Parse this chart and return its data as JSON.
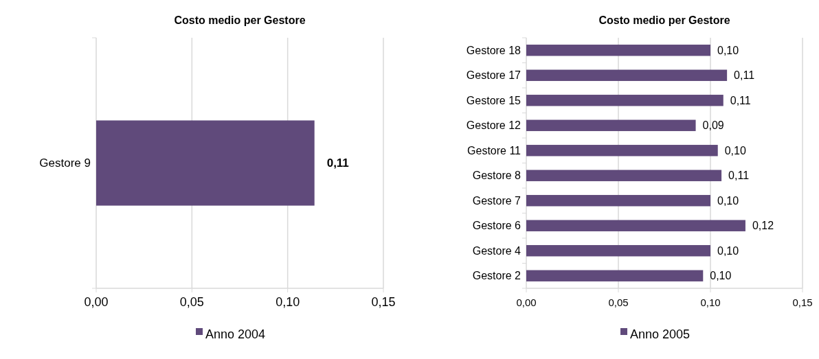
{
  "chart_data": [
    {
      "type": "bar",
      "orientation": "horizontal",
      "title": "Costo medio per Gestore",
      "categories": [
        "Gestore 9"
      ],
      "series": [
        {
          "name": "Anno 2004",
          "color": "#604a7b",
          "values": [
            0.114
          ],
          "value_labels": [
            "0,11"
          ]
        }
      ],
      "xlim": [
        0,
        0.15
      ],
      "xticks": [
        {
          "value": 0,
          "label": "0,00"
        },
        {
          "value": 0.05,
          "label": "0,05"
        },
        {
          "value": 0.1,
          "label": "0,10"
        },
        {
          "value": 0.15,
          "label": "0,15"
        }
      ],
      "grid": "x",
      "legend": "bottom"
    },
    {
      "type": "bar",
      "orientation": "horizontal",
      "title": "Costo medio per Gestore",
      "categories": [
        "Gestore 18",
        "Gestore 17",
        "Gestore 15",
        "Gestore 12",
        "Gestore 11",
        "Gestore 8",
        "Gestore 7",
        "Gestore 6",
        "Gestore 4",
        "Gestore 2"
      ],
      "series": [
        {
          "name": "Anno 2005",
          "color": "#604a7b",
          "values": [
            0.1,
            0.109,
            0.107,
            0.092,
            0.104,
            0.106,
            0.1,
            0.119,
            0.1,
            0.096
          ],
          "value_labels": [
            "0,10",
            "0,11",
            "0,11",
            "0,09",
            "0,10",
            "0,11",
            "0,10",
            "0,12",
            "0,10",
            "0,10"
          ]
        }
      ],
      "xlim": [
        0,
        0.15
      ],
      "xticks": [
        {
          "value": 0,
          "label": "0,00"
        },
        {
          "value": 0.05,
          "label": "0,05"
        },
        {
          "value": 0.1,
          "label": "0,10"
        },
        {
          "value": 0.15,
          "label": "0,15"
        }
      ],
      "grid": "x",
      "legend": "bottom"
    }
  ]
}
